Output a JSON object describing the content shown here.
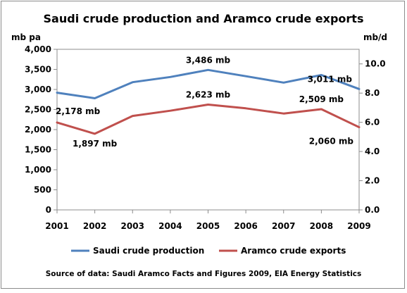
{
  "chart_data": {
    "type": "line",
    "title": "Saudi crude production and Aramco crude exports",
    "y_left_unit": "mb pa",
    "y_right_unit": "mb/d",
    "source": "Source of data:  Saudi Aramco Facts and Figures 2009, EIA Energy Statistics",
    "x": [
      "2001",
      "2002",
      "2003",
      "2004",
      "2005",
      "2006",
      "2007",
      "2008",
      "2009"
    ],
    "ylim_left": [
      0,
      4000
    ],
    "ylim_right": [
      0,
      11
    ],
    "y_left_ticks": [
      "0",
      "500",
      "1,000",
      "1,500",
      "2,000",
      "2,500",
      "3,000",
      "3,500",
      "4,000"
    ],
    "y_right_ticks": [
      "0.0",
      "2.0",
      "4.0",
      "6.0",
      "8.0",
      "10.0"
    ],
    "grid": false,
    "legend_position": "bottom",
    "series": [
      {
        "name": "Saudi crude production",
        "color": "#4f81bd",
        "values": [
          2920,
          2780,
          3180,
          3310,
          3486,
          3330,
          3170,
          3360,
          3011
        ]
      },
      {
        "name": "Aramco crude exports",
        "color": "#c0504d",
        "values": [
          2178,
          1897,
          2340,
          2470,
          2623,
          2530,
          2400,
          2509,
          2060
        ]
      }
    ],
    "annotations": [
      {
        "series": 0,
        "index": 4,
        "text": "3,486 mb",
        "position": "above"
      },
      {
        "series": 0,
        "index": 8,
        "text": "3,011 mb",
        "position": "above-left"
      },
      {
        "series": 1,
        "index": 0,
        "text": "2,178 mb",
        "position": "right"
      },
      {
        "series": 1,
        "index": 1,
        "text": "1,897 mb",
        "position": "below"
      },
      {
        "series": 1,
        "index": 4,
        "text": "2,623 mb",
        "position": "above"
      },
      {
        "series": 1,
        "index": 7,
        "text": "2,509 mb",
        "position": "above"
      },
      {
        "series": 1,
        "index": 8,
        "text": "2,060 mb",
        "position": "below-left"
      }
    ]
  }
}
